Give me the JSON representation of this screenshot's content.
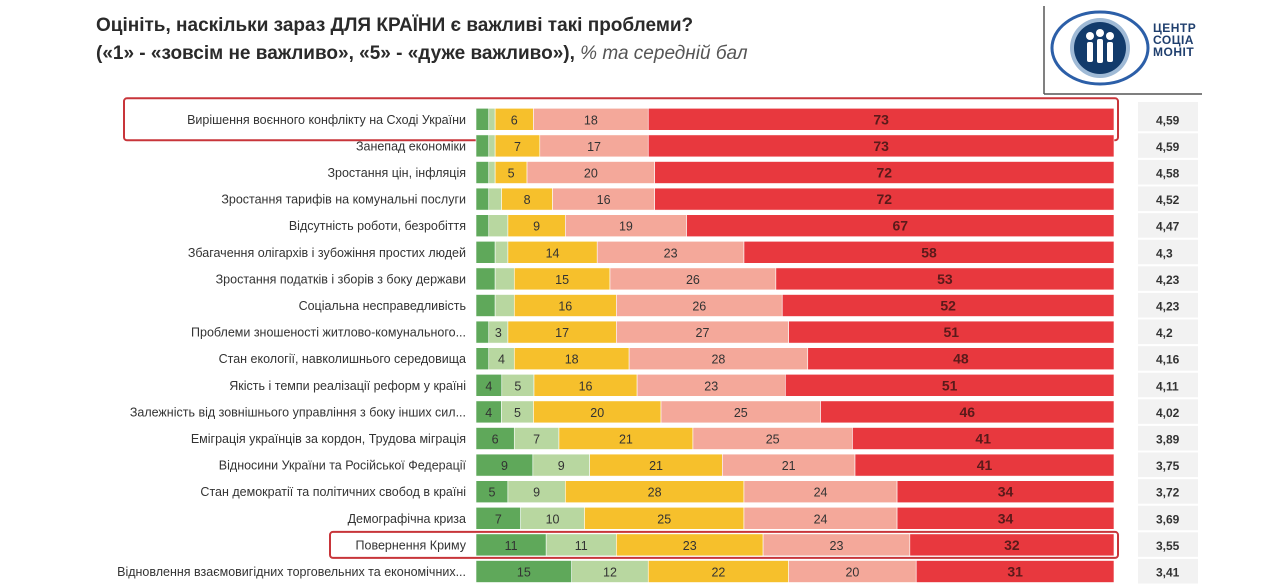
{
  "title": {
    "line1": "Оцініть, наскільки зараз ДЛЯ КРАЇНИ є важливі такі проблеми?",
    "line2": "(«1» - «зовсім не важливо», «5» - «дуже важливо»),",
    "line2_italic": "% та середній бал"
  },
  "logo": {
    "line1": "ЦЕНТР",
    "line2": "СОЦІА",
    "line3": "МОНІТ"
  },
  "colors": {
    "score1": "#5fa85a",
    "score2": "#b8d7a0",
    "score3": "#f6c02c",
    "score4": "#f4a89a",
    "score5": "#e8383e",
    "highlight": "#c8353a"
  },
  "chart_data": {
    "type": "bar",
    "stacked": true,
    "orientation": "horizontal",
    "xlim": [
      0,
      100
    ],
    "series_names": [
      "1",
      "2",
      "3",
      "4",
      "5"
    ],
    "rows": [
      {
        "label": "Вирішення воєнного конфлікту на Сході України",
        "values": [
          2,
          1,
          6,
          18,
          73
        ],
        "labels": [
          "",
          "",
          "6",
          "18",
          "73"
        ],
        "average": "4,59",
        "highlighted": true
      },
      {
        "label": "Занепад економіки",
        "values": [
          2,
          1,
          7,
          17,
          73
        ],
        "labels": [
          "",
          "",
          "7",
          "17",
          "73"
        ],
        "average": "4,59",
        "highlighted": false
      },
      {
        "label": "Зростання цін, інфляція",
        "values": [
          2,
          1,
          5,
          20,
          72
        ],
        "labels": [
          "",
          "",
          "5",
          "20",
          "72"
        ],
        "average": "4,58",
        "highlighted": false
      },
      {
        "label": "Зростання тарифів на комунальні послуги",
        "values": [
          2,
          2,
          8,
          16,
          72
        ],
        "labels": [
          "",
          "",
          "8",
          "16",
          "72"
        ],
        "average": "4,52",
        "highlighted": false
      },
      {
        "label": "Відсутність роботи, безробіття",
        "values": [
          2,
          3,
          9,
          19,
          67
        ],
        "labels": [
          "",
          "",
          "9",
          "19",
          "67"
        ],
        "average": "4,47",
        "highlighted": false
      },
      {
        "label": "Збагачення олігархів і зубожіння простих людей",
        "values": [
          3,
          2,
          14,
          23,
          58
        ],
        "labels": [
          "",
          "",
          "14",
          "23",
          "58"
        ],
        "average": "4,3",
        "highlighted": false
      },
      {
        "label": "Зростання податків і зборів з боку держави",
        "values": [
          3,
          3,
          15,
          26,
          53
        ],
        "labels": [
          "",
          "",
          "15",
          "26",
          "53"
        ],
        "average": "4,23",
        "highlighted": false
      },
      {
        "label": "Соціальна несправедливість",
        "values": [
          3,
          3,
          16,
          26,
          52
        ],
        "labels": [
          "",
          "",
          "16",
          "26",
          "52"
        ],
        "average": "4,23",
        "highlighted": false
      },
      {
        "label": "Проблеми зношеності житлово-комунального...",
        "values": [
          2,
          3,
          17,
          27,
          51
        ],
        "labels": [
          "",
          "3",
          "17",
          "27",
          "51"
        ],
        "average": "4,2",
        "highlighted": false
      },
      {
        "label": "Стан екології, навколишнього середовища",
        "values": [
          2,
          4,
          18,
          28,
          48
        ],
        "labels": [
          "",
          "4",
          "18",
          "28",
          "48"
        ],
        "average": "4,16",
        "highlighted": false
      },
      {
        "label": "Якість і темпи реалізації реформ у країні",
        "values": [
          4,
          5,
          16,
          23,
          51
        ],
        "labels": [
          "4",
          "5",
          "16",
          "23",
          "51"
        ],
        "average": "4,11",
        "highlighted": false
      },
      {
        "label": "Залежність від зовнішнього управління з боку інших сил...",
        "values": [
          4,
          5,
          20,
          25,
          46
        ],
        "labels": [
          "4",
          "5",
          "20",
          "25",
          "46"
        ],
        "average": "4,02",
        "highlighted": false
      },
      {
        "label": "Еміграція українців за кордон, Трудова міграція",
        "values": [
          6,
          7,
          21,
          25,
          41
        ],
        "labels": [
          "6",
          "7",
          "21",
          "25",
          "41"
        ],
        "average": "3,89",
        "highlighted": false
      },
      {
        "label": "Відносини України та Російської Федерації",
        "values": [
          9,
          9,
          21,
          21,
          41
        ],
        "labels": [
          "9",
          "9",
          "21",
          "21",
          "41"
        ],
        "average": "3,75",
        "highlighted": false
      },
      {
        "label": "Стан демократії та політичних свобод в країні",
        "values": [
          5,
          9,
          28,
          24,
          34
        ],
        "labels": [
          "5",
          "9",
          "28",
          "24",
          "34"
        ],
        "average": "3,72",
        "highlighted": false
      },
      {
        "label": "Демографічна криза",
        "values": [
          7,
          10,
          25,
          24,
          34
        ],
        "labels": [
          "7",
          "10",
          "25",
          "24",
          "34"
        ],
        "average": "3,69",
        "highlighted": false
      },
      {
        "label": "Повернення Криму",
        "values": [
          11,
          11,
          23,
          23,
          32
        ],
        "labels": [
          "11",
          "11",
          "23",
          "23",
          "32"
        ],
        "average": "3,55",
        "highlighted": true
      },
      {
        "label": "Відновлення взаємовигідних торговельних та економічних...",
        "values": [
          15,
          12,
          22,
          20,
          31
        ],
        "labels": [
          "15",
          "12",
          "22",
          "20",
          "31"
        ],
        "average": "3,41",
        "highlighted": false
      }
    ]
  }
}
